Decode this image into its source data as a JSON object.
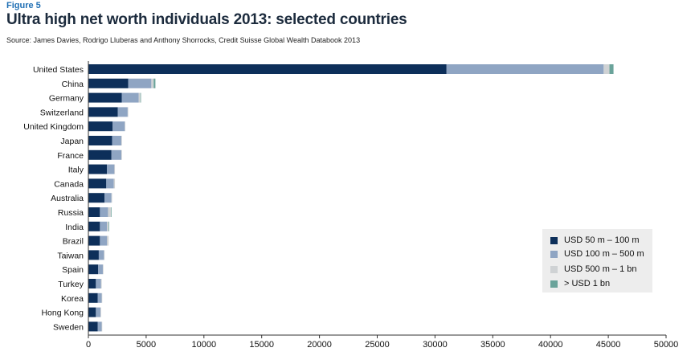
{
  "figure_label": "Figure 5",
  "title": "Ultra high net worth individuals 2013: selected countries",
  "source": "Source: James Davies, Rodrigo Lluberas and Anthony Shorrocks, Credit Suisse Global Wealth Databook 2013",
  "colors": {
    "band_50_100m": "#0d2f5a",
    "band_100_500m": "#8fa5c3",
    "band_500m_1bn": "#cfd2d4",
    "band_over_1bn": "#6aa39a",
    "axis": "#333333",
    "legend_bg": "#ededed"
  },
  "legend": {
    "items": [
      {
        "label": "USD 50 m – 100 m"
      },
      {
        "label": "USD 100 m – 500 m"
      },
      {
        "label": "USD 500 m – 1 bn"
      },
      {
        "label": "> USD 1 bn"
      }
    ]
  },
  "chart_data": {
    "type": "bar",
    "orientation": "horizontal",
    "stacked": true,
    "title": "Ultra high net worth individuals 2013: selected countries",
    "xlabel": "",
    "ylabel": "",
    "xlim": [
      0,
      50000
    ],
    "xticks": [
      0,
      5000,
      10000,
      15000,
      20000,
      25000,
      30000,
      35000,
      40000,
      45000,
      50000
    ],
    "grid": false,
    "legend_position": "bottom-right",
    "categories": [
      "United States",
      "China",
      "Germany",
      "Switzerland",
      "United Kingdom",
      "Japan",
      "France",
      "Italy",
      "Canada",
      "Australia",
      "Russia",
      "India",
      "Brazil",
      "Taiwan",
      "Spain",
      "Turkey",
      "Korea",
      "Hong Kong",
      "Sweden"
    ],
    "series": [
      {
        "name": "USD 50 m – 100 m",
        "values": [
          31000,
          3450,
          2900,
          2550,
          2100,
          2050,
          2000,
          1600,
          1550,
          1400,
          1000,
          1000,
          1000,
          900,
          850,
          650,
          800,
          650,
          800
        ]
      },
      {
        "name": "USD 100 m – 500 m",
        "values": [
          13600,
          2000,
          1450,
          850,
          1050,
          800,
          850,
          650,
          650,
          600,
          700,
          600,
          600,
          450,
          400,
          450,
          350,
          400,
          350
        ]
      },
      {
        "name": "USD 500 m – 1 bn",
        "values": [
          500,
          200,
          150,
          50,
          50,
          50,
          50,
          50,
          100,
          50,
          250,
          150,
          150,
          50,
          50,
          50,
          50,
          50,
          50
        ]
      },
      {
        "name": "> USD 1 bn",
        "values": [
          350,
          150,
          50,
          0,
          0,
          0,
          0,
          0,
          0,
          0,
          50,
          50,
          0,
          0,
          0,
          0,
          0,
          0,
          0
        ]
      }
    ]
  }
}
